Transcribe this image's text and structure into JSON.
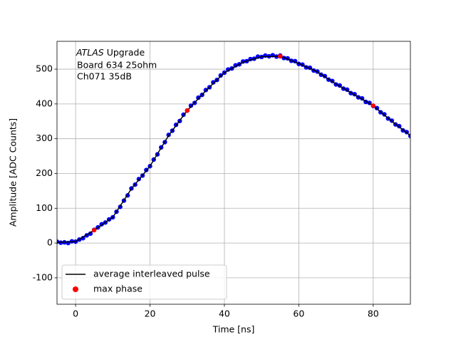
{
  "chart_data": {
    "type": "line",
    "xlabel": "Time [ns]",
    "ylabel": "Amplitude [ADC Counts]",
    "annotation": {
      "experiment": "ATLAS",
      "text": "Upgrade",
      "lines": [
        "Board 634 25ohm",
        "Ch071 35dB"
      ]
    },
    "xlim": [
      -5,
      90
    ],
    "ylim": [
      -176,
      580
    ],
    "xticks": [
      0,
      20,
      40,
      60,
      80
    ],
    "yticks": [
      -100,
      0,
      100,
      200,
      300,
      400,
      500
    ],
    "grid": true,
    "legend": "lower left",
    "series": [
      {
        "mode": "markers",
        "color": "#0000ff",
        "x": [
          -5,
          -4,
          -3,
          -2,
          -1,
          0,
          1,
          2,
          3,
          4,
          5,
          6,
          7,
          8,
          9,
          10,
          11,
          12,
          13,
          14,
          15,
          16,
          17,
          18,
          19,
          20,
          21,
          22,
          23,
          24,
          25,
          26,
          27,
          28,
          29,
          30,
          31,
          32,
          33,
          34,
          35,
          36,
          37,
          38,
          39,
          40,
          41,
          42,
          43,
          44,
          45,
          46,
          47,
          48,
          49,
          50,
          51,
          52,
          53,
          54,
          55,
          56,
          57,
          58,
          59,
          60,
          61,
          62,
          63,
          64,
          65,
          66,
          67,
          68,
          69,
          70,
          71,
          72,
          73,
          74,
          75,
          76,
          77,
          78,
          79,
          80,
          81,
          82,
          83,
          84,
          85,
          86,
          87,
          88,
          89,
          90
        ],
        "values": [
          4,
          1,
          2,
          0,
          5,
          4,
          10,
          14,
          22,
          27,
          38,
          45,
          54,
          59,
          68,
          74,
          90,
          104,
          122,
          137,
          157,
          168,
          184,
          194,
          210,
          221,
          240,
          255,
          275,
          290,
          311,
          323,
          340,
          351,
          369,
          381,
          395,
          403,
          418,
          426,
          440,
          448,
          462,
          469,
          482,
          490,
          499,
          502,
          511,
          514,
          522,
          523,
          529,
          530,
          536,
          535,
          539,
          537,
          540,
          536,
          539,
          532,
          531,
          524,
          523,
          515,
          513,
          505,
          504,
          496,
          493,
          484,
          480,
          470,
          466,
          456,
          453,
          444,
          441,
          431,
          428,
          419,
          416,
          406,
          403,
          394,
          388,
          376,
          370,
          358,
          352,
          341,
          336,
          324,
          319,
          308
        ]
      },
      {
        "name": "average interleaved pulse",
        "mode": "line",
        "color": "#000000",
        "x": [
          -5,
          0,
          5,
          10,
          15,
          20,
          25,
          30,
          35,
          40,
          45,
          50,
          55,
          60,
          65,
          70,
          75,
          80,
          85,
          90
        ],
        "values": [
          2,
          4,
          37,
          74,
          156,
          221,
          309,
          381,
          438,
          490,
          520,
          536,
          537,
          516,
          492,
          457,
          426,
          395,
          350,
          309
        ]
      },
      {
        "name": "max phase",
        "mode": "markers",
        "color": "#ff0000",
        "x": [
          5,
          30,
          55,
          80
        ],
        "values": [
          37,
          381,
          537,
          395
        ]
      }
    ]
  }
}
